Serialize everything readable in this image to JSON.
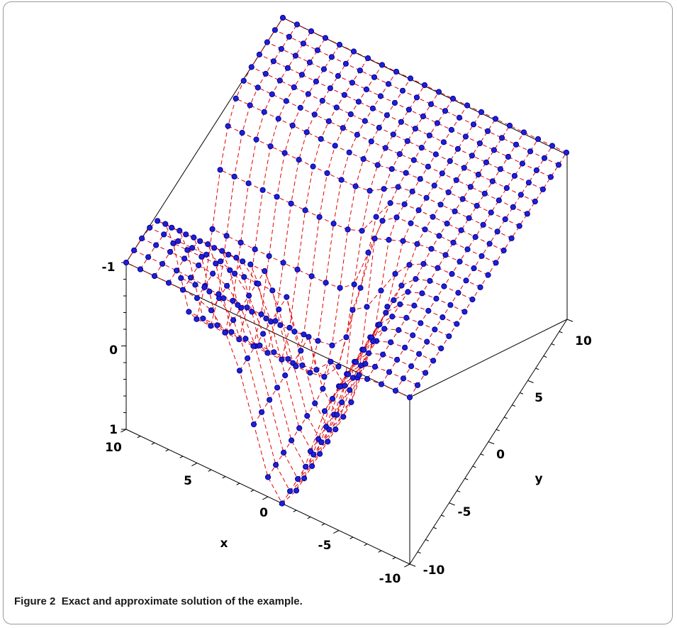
{
  "caption": {
    "label": "Figure 2",
    "text": "Exact and approximate solution of the example."
  },
  "chart_data": {
    "type": "surface3d",
    "title": "",
    "x_axis": {
      "label": "x",
      "range": [
        -10,
        10
      ],
      "ticks": [
        "10",
        "5",
        "0",
        "-5",
        "-10"
      ]
    },
    "y_axis": {
      "label": "y",
      "range": [
        -10,
        10
      ],
      "ticks": [
        "10",
        "5",
        "0",
        "-5",
        "-10"
      ]
    },
    "z_axis": {
      "label": "",
      "range": [
        -1,
        1
      ],
      "ticks": [
        "-1",
        "0",
        "1"
      ]
    },
    "grid_lines": 21,
    "series": [
      {
        "style": "dashed-line",
        "color": "#e00000"
      },
      {
        "style": "markers",
        "color": "#2020d0"
      }
    ]
  }
}
